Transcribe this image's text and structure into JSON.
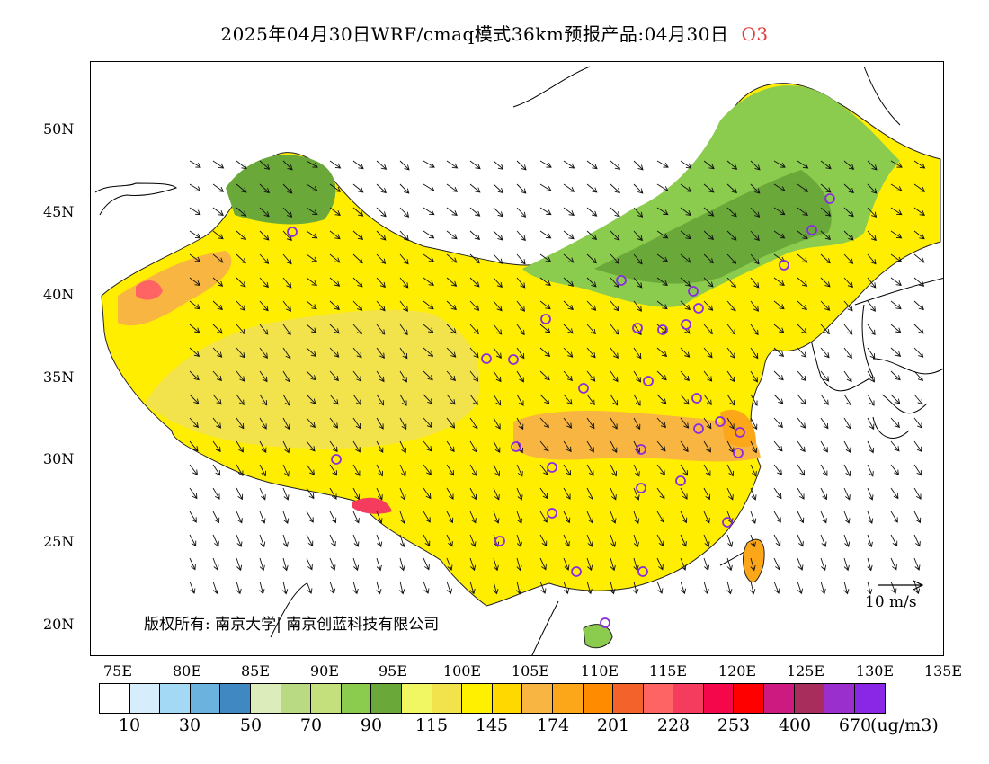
{
  "title": {
    "text": "2025年04月30日WRF/cmaq模式36km预报产品:04月30日",
    "species": "O3"
  },
  "axes": {
    "lat_labels": [
      "50N",
      "45N",
      "40N",
      "35N",
      "30N",
      "25N",
      "20N"
    ],
    "lon_labels": [
      "75E",
      "80E",
      "85E",
      "90E",
      "95E",
      "100E",
      "105E",
      "110E",
      "115E",
      "120E",
      "125E",
      "130E",
      "135E"
    ]
  },
  "copyright": "版权所有: 南京大学| 南京创蓝科技有限公司",
  "wind_scale": "10 m/s",
  "colorbar": {
    "colors": [
      "#ffffff",
      "#d6eefb",
      "#a4d9f5",
      "#6cb2de",
      "#3f88c1",
      "#dcecba",
      "#b9d982",
      "#c4e07c",
      "#8bcb4e",
      "#6aa83a",
      "#f1f763",
      "#f2e34d",
      "#fff000",
      "#ffd800",
      "#f9b541",
      "#fca61a",
      "#ff8c00",
      "#f4622c",
      "#ff6464",
      "#f53c5e",
      "#f5074b",
      "#ff0000",
      "#cc1a80",
      "#a82c5c",
      "#9b2fcd",
      "#8a26e6"
    ],
    "labels": [
      "10",
      "30",
      "50",
      "70",
      "90",
      "115",
      "145",
      "174",
      "201",
      "228",
      "253",
      "400",
      "670"
    ],
    "unit": "(ug/m3)"
  }
}
